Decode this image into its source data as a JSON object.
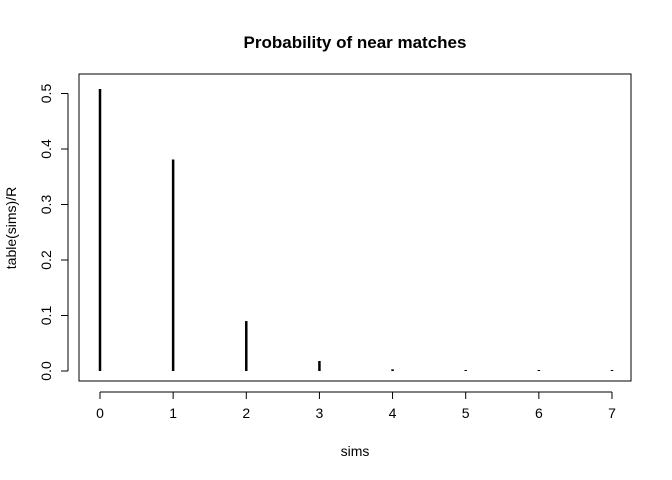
{
  "chart_data": {
    "type": "bar",
    "title": "Probability of near matches",
    "xlabel": "sims",
    "ylabel": "table(sims)/R",
    "x": [
      0,
      1,
      2,
      3,
      4,
      5,
      6,
      7
    ],
    "values": [
      0.508,
      0.381,
      0.09,
      0.018,
      0.003,
      0.0005,
      0.0002,
      0.0001
    ],
    "xticks": [
      "0",
      "1",
      "2",
      "3",
      "4",
      "5",
      "6",
      "7"
    ],
    "yticks": [
      "0.0",
      "0.1",
      "0.2",
      "0.3",
      "0.4",
      "0.5"
    ],
    "ylim": [
      0,
      0.5
    ],
    "grid": false
  }
}
